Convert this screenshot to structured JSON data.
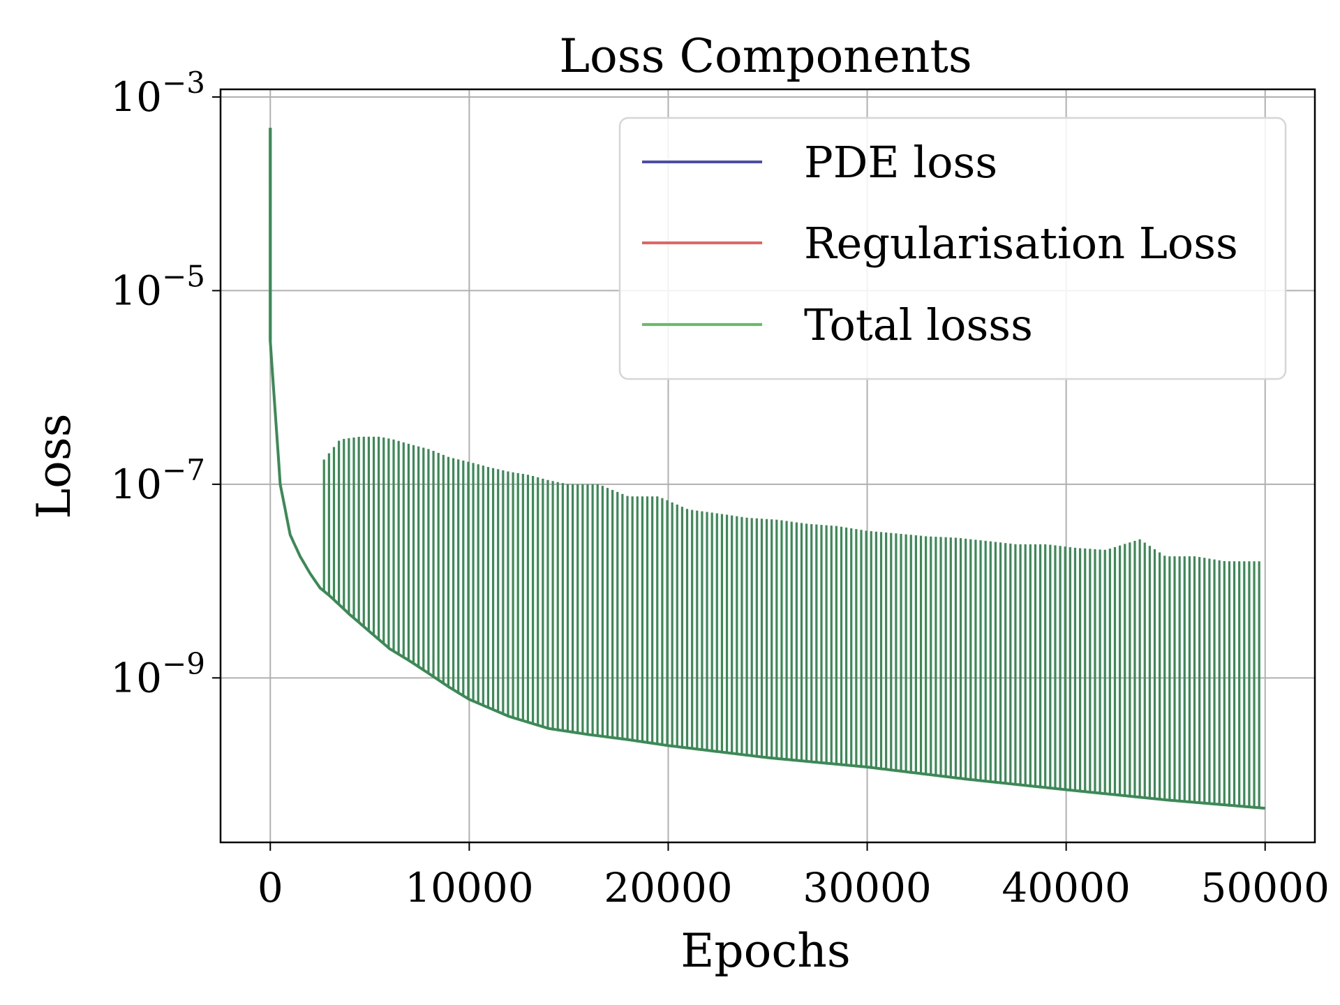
{
  "chart_data": {
    "type": "line",
    "title": "Loss Components",
    "xlabel": "Epochs",
    "ylabel": "Loss",
    "xlim": [
      -2500,
      52500
    ],
    "ylim": [
      2e-11,
      0.0012
    ],
    "yscale": "log",
    "grid": true,
    "legend_position": "top-right",
    "x_ticks": [
      {
        "value": 0,
        "label": "0"
      },
      {
        "value": 10000,
        "label": "10000"
      },
      {
        "value": 20000,
        "label": "20000"
      },
      {
        "value": 30000,
        "label": "30000"
      },
      {
        "value": 40000,
        "label": "40000"
      },
      {
        "value": 50000,
        "label": "50000"
      }
    ],
    "y_ticks": [
      {
        "value": 0.001,
        "base": "10",
        "exp": "−3"
      },
      {
        "value": 1e-05,
        "base": "10",
        "exp": "−5"
      },
      {
        "value": 1e-07,
        "base": "10",
        "exp": "−7"
      },
      {
        "value": 1e-09,
        "base": "10",
        "exp": "−9"
      }
    ],
    "series": [
      {
        "name": "PDE loss",
        "color": "#4c4cb0"
      },
      {
        "name": "Regularisation Loss",
        "color": "#e06666"
      },
      {
        "name": "Total losss",
        "color": "#6aba6a"
      }
    ],
    "rendered_line_color": "#3a8a55",
    "baseline_curve": {
      "x": [
        0,
        500,
        1000,
        1500,
        2000,
        2500,
        3000,
        4000,
        5000,
        6000,
        7000,
        8000,
        9000,
        10000,
        12000,
        14000,
        16000,
        18000,
        20000,
        25000,
        30000,
        35000,
        40000,
        45000,
        50000
      ],
      "y": [
        3e-06,
        1e-07,
        3e-08,
        1.8e-08,
        1.2e-08,
        8.5e-09,
        7e-09,
        4.5e-09,
        3e-09,
        2e-09,
        1.5e-09,
        1.1e-09,
        8e-10,
        6e-10,
        4e-10,
        3e-10,
        2.6e-10,
        2.3e-10,
        2e-10,
        1.5e-10,
        1.2e-10,
        9e-11,
        7e-11,
        5.5e-11,
        4.5e-11
      ]
    },
    "initial_peak": {
      "x": 0,
      "y": 0.00048
    },
    "spike_peaks": {
      "x": [
        2700,
        3500,
        4500,
        5500,
        6200,
        7000,
        8000,
        9000,
        10000,
        11000,
        12000,
        13000,
        14000,
        15000,
        16500,
        18000,
        19500,
        21000,
        22500,
        24000,
        25500,
        27000,
        28500,
        30000,
        31500,
        33000,
        34500,
        36000,
        37500,
        39000,
        40500,
        42000,
        43700,
        45000,
        46500,
        48000,
        49700
      ],
      "y": [
        1.8e-07,
        2.9e-07,
        3.1e-07,
        3.1e-07,
        2.9e-07,
        2.6e-07,
        2.3e-07,
        1.9e-07,
        1.7e-07,
        1.5e-07,
        1.35e-07,
        1.25e-07,
        1.1e-07,
        1e-07,
        1e-07,
        7.5e-08,
        7.5e-08,
        5.5e-08,
        5e-08,
        4.5e-08,
        4.3e-08,
        3.9e-08,
        3.7e-08,
        3.3e-08,
        3.1e-08,
        2.9e-08,
        2.8e-08,
        2.6e-08,
        2.4e-08,
        2.4e-08,
        2.2e-08,
        2.1e-08,
        2.7e-08,
        1.8e-08,
        1.8e-08,
        1.6e-08,
        1.6e-08
      ]
    }
  }
}
